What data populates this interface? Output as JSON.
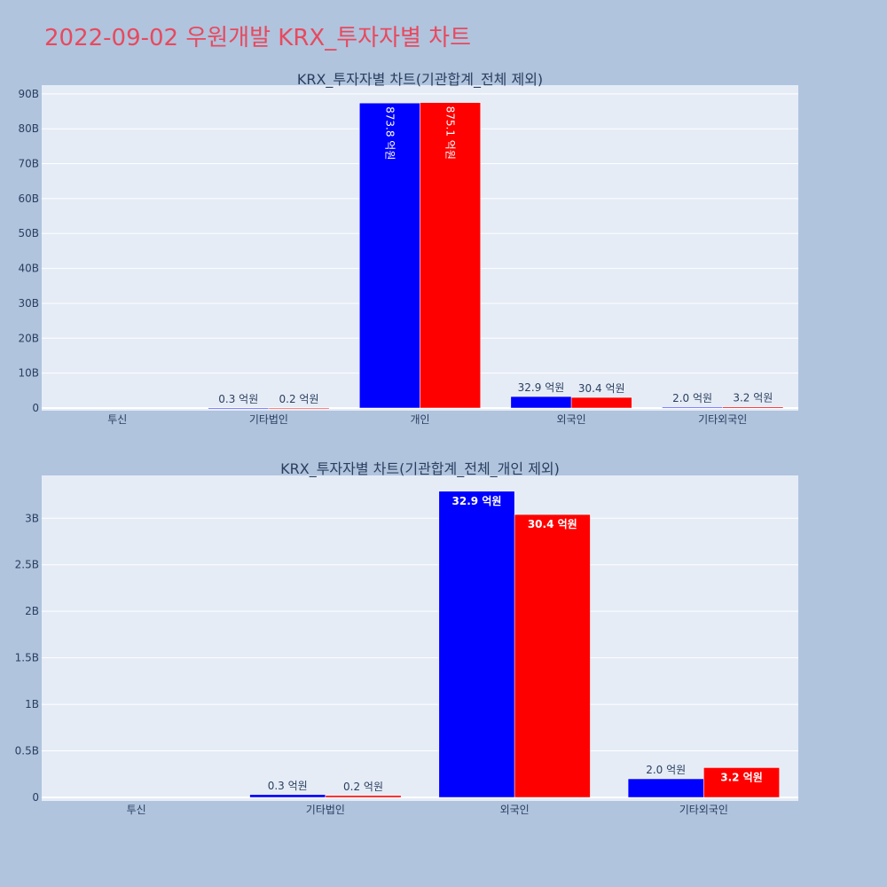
{
  "page_title": "2022-09-02 우원개발 KRX_투자자별 차트",
  "colors": {
    "series_a": "#0000ff",
    "series_b": "#ff0000",
    "plot_bg": "#e5ecf6",
    "paper_bg": "#b0c4de",
    "title": "#e8495e"
  },
  "chart_data": [
    {
      "type": "bar",
      "title": "KRX_투자자별 차트(기관합계_전체 제외)",
      "categories": [
        "투신",
        "기타법인",
        "개인",
        "외국인",
        "기타외국인"
      ],
      "series": [
        {
          "values": [
            0,
            30000000,
            87380000000,
            3290000000,
            200000000
          ],
          "labels": [
            "",
            "0.3 억원",
            "873.8 억원",
            "32.9 억원",
            "2.0 억원"
          ]
        },
        {
          "values": [
            0,
            20000000,
            87510000000,
            3040000000,
            320000000
          ],
          "labels": [
            "",
            "0.2 억원",
            "875.1 억원",
            "30.4 억원",
            "3.2 억원"
          ]
        }
      ],
      "yticks": [
        "0",
        "10B",
        "20B",
        "30B",
        "40B",
        "50B",
        "60B",
        "70B",
        "80B",
        "90B"
      ],
      "ytick_step": 10000000000,
      "ylim": [
        0,
        92500000000
      ],
      "grid": true,
      "legend": "none"
    },
    {
      "type": "bar",
      "title": "KRX_투자자별 차트(기관합계_전체_개인 제외)",
      "categories": [
        "투신",
        "기타법인",
        "외국인",
        "기타외국인"
      ],
      "series": [
        {
          "values": [
            0,
            30000000,
            3290000000,
            200000000
          ],
          "labels": [
            "",
            "0.3 억원",
            "32.9 억원",
            "2.0 억원"
          ]
        },
        {
          "values": [
            0,
            20000000,
            3040000000,
            320000000
          ],
          "labels": [
            "",
            "0.2 억원",
            "30.4 억원",
            "3.2 억원"
          ]
        }
      ],
      "yticks": [
        "0",
        "0.5B",
        "1B",
        "1.5B",
        "2B",
        "2.5B",
        "3B"
      ],
      "ytick_step": 500000000,
      "ylim": [
        0,
        3460000000
      ],
      "grid": true,
      "legend": "none"
    }
  ]
}
